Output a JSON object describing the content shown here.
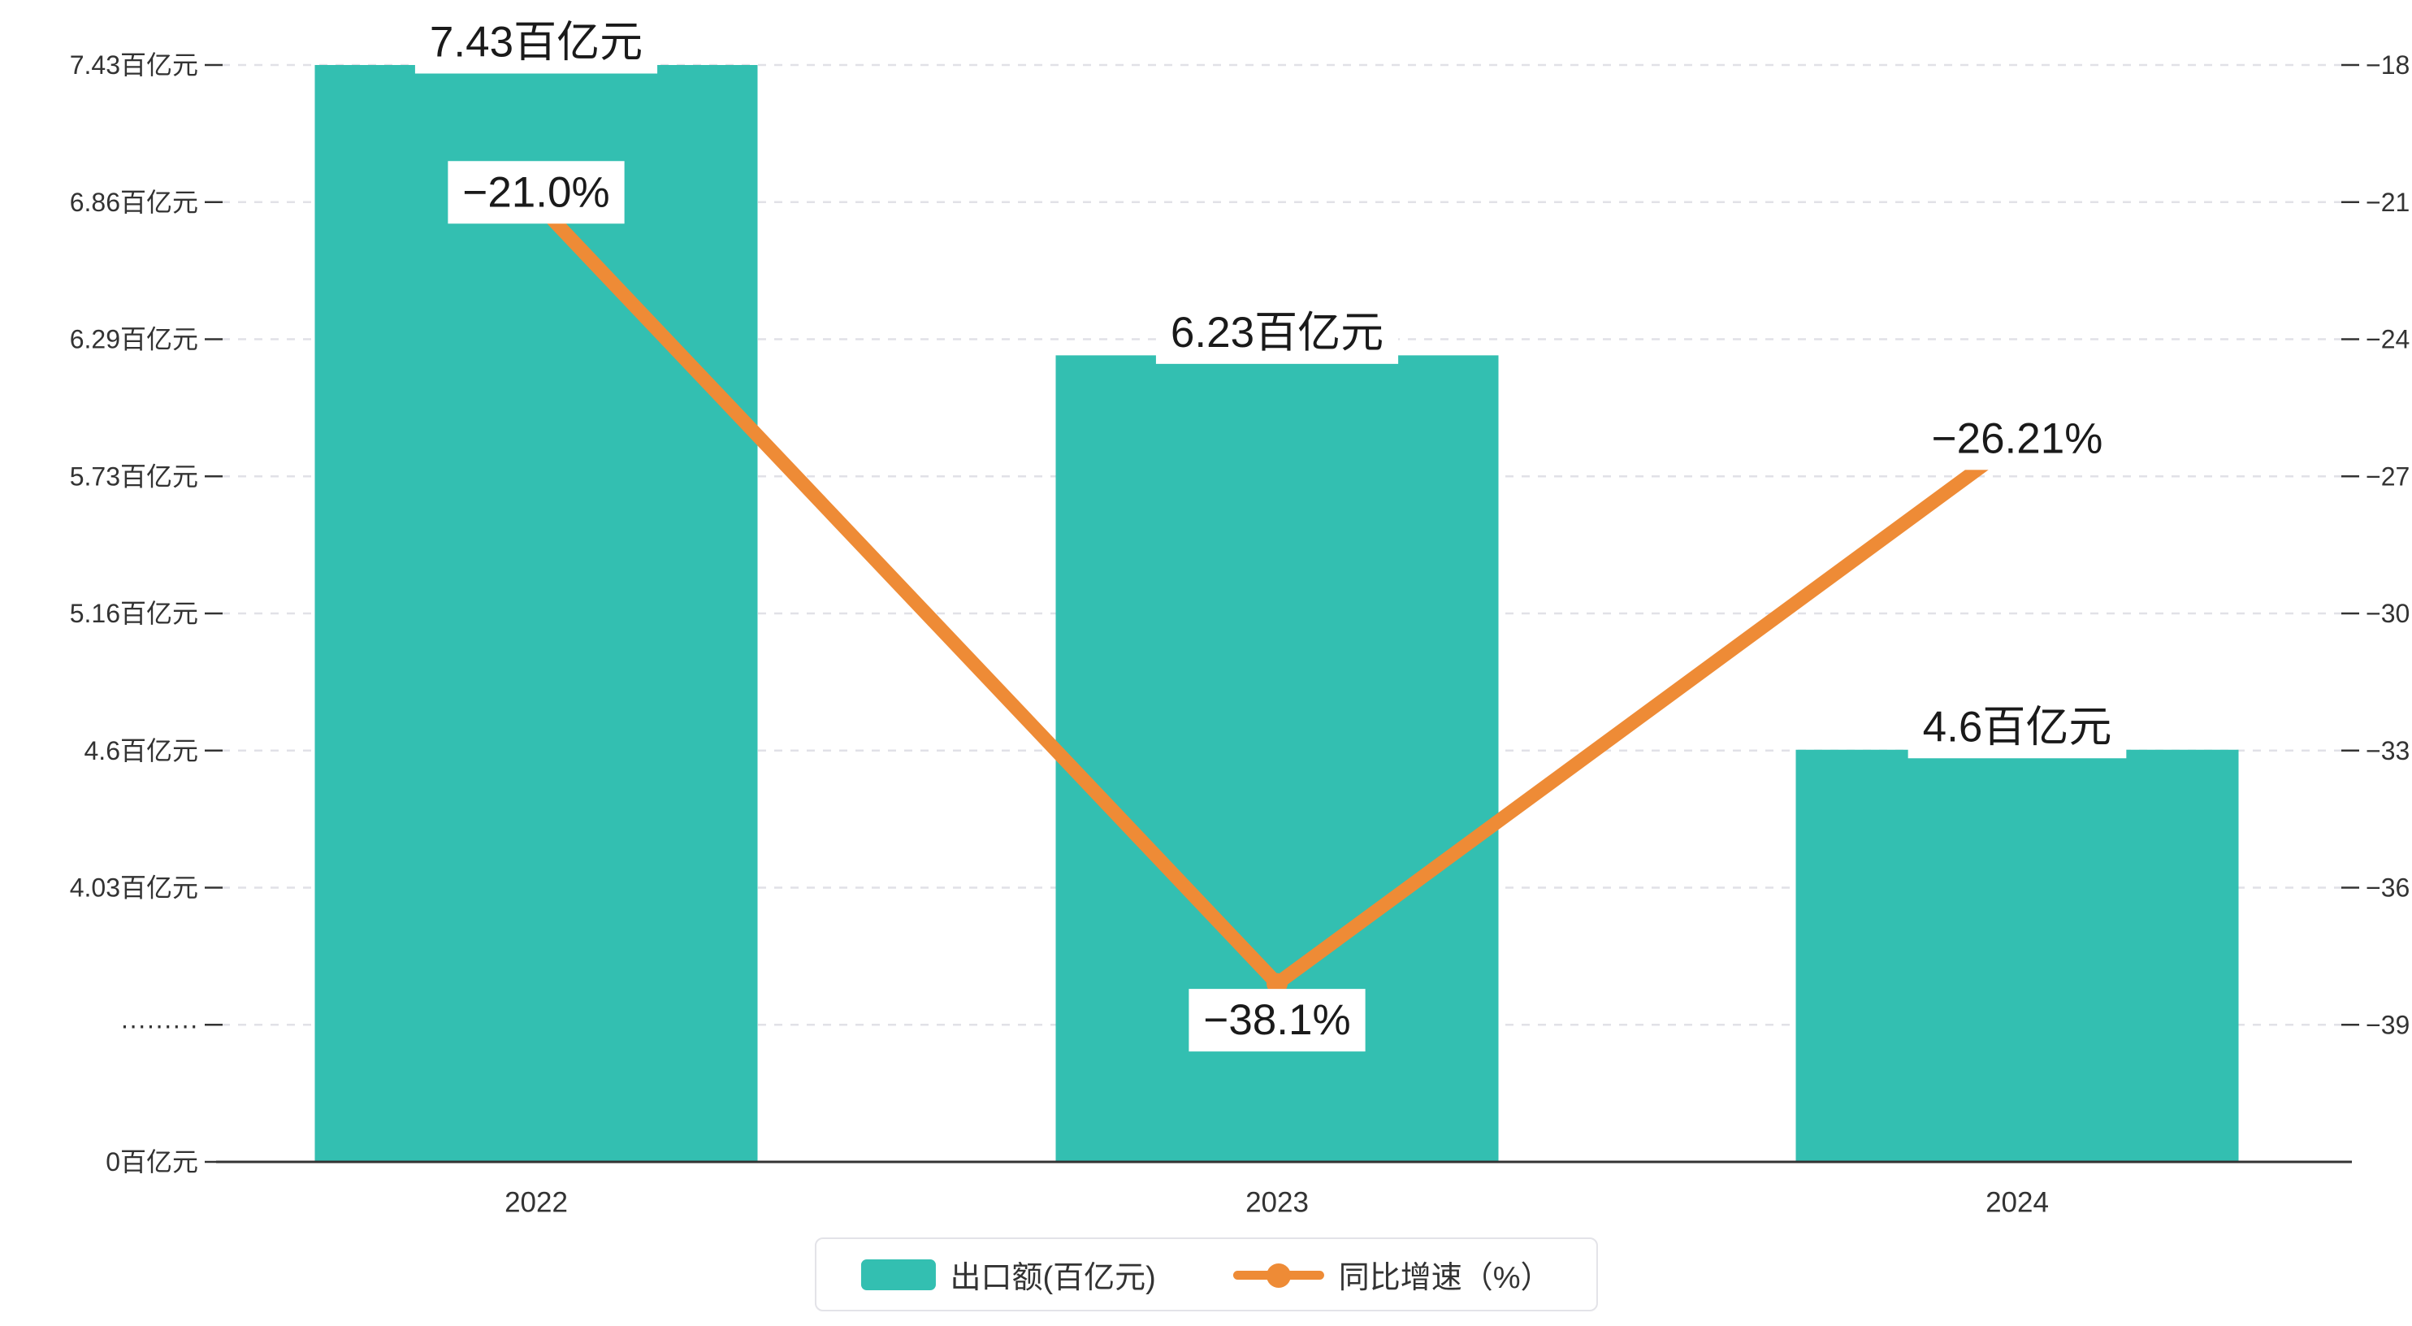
{
  "chart_data": {
    "type": "bar+line",
    "title": "",
    "categories": [
      "2022",
      "2023",
      "2024"
    ],
    "series": [
      {
        "name": "出口额(百亿元)",
        "type": "bar",
        "axis": "left",
        "values": [
          7.43,
          6.23,
          4.6
        ],
        "labels": [
          "7.43百亿元",
          "6.23百亿元",
          "4.6百亿元"
        ],
        "color": "#33bfb1"
      },
      {
        "name": "同比增速（%）",
        "type": "line",
        "axis": "right",
        "values": [
          -21.0,
          -38.1,
          -26.21
        ],
        "labels": [
          "−21.0%",
          "−38.1%",
          "−26.21%"
        ],
        "color": "#ee8b36"
      }
    ],
    "left_axis": {
      "tick_labels": [
        "7.43百亿元",
        "6.86百亿元",
        "6.29百亿元",
        "5.73百亿元",
        "5.16百亿元",
        "4.6百亿元",
        "4.03百亿元",
        "·········",
        "0百亿元"
      ],
      "tick_values": [
        7.43,
        6.86,
        6.29,
        5.73,
        5.16,
        4.6,
        4.03,
        null,
        0
      ],
      "has_break": true
    },
    "right_axis": {
      "tick_labels": [
        "−18",
        "−21",
        "−24",
        "−27",
        "−30",
        "−33",
        "−36",
        "−39"
      ],
      "tick_values": [
        -18,
        -21,
        -24,
        -27,
        -30,
        -33,
        -36,
        -39
      ]
    },
    "grid": true,
    "legend_position": "bottom"
  },
  "legend": {
    "items": [
      {
        "label": "出口额(百亿元)",
        "swatch": "bar",
        "color": "#33bfb1"
      },
      {
        "label": "同比增速（%）",
        "swatch": "line-dot",
        "color": "#ee8b36"
      }
    ]
  },
  "colors": {
    "bar": "#33bfb1",
    "line": "#ee8b36",
    "grid": "#e1e1e7",
    "axis_line": "#333333",
    "axis_text": "#333333",
    "label_text": "#1a1a1a",
    "label_bg": "#ffffff"
  }
}
